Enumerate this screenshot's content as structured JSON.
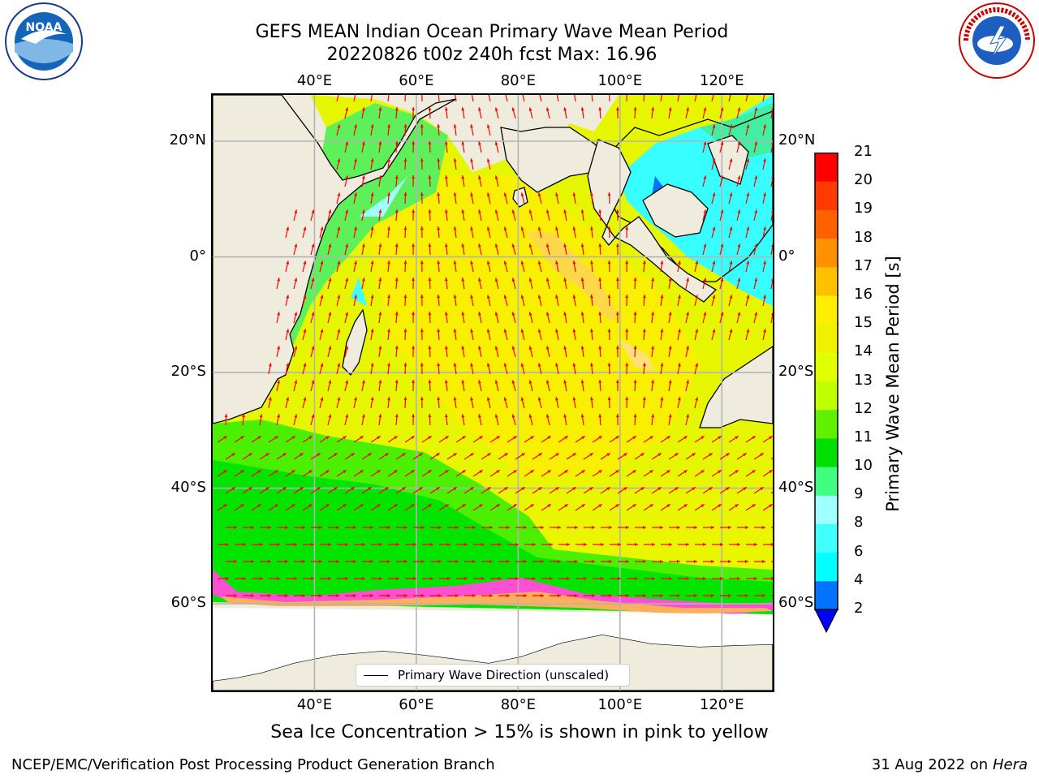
{
  "title_line1": "GEFS MEAN Indian Ocean Primary Wave Mean Period",
  "title_line2": "20220826 t00z 240h fcst   Max: 16.96",
  "lon_ticks": [
    {
      "lon": 40,
      "label": "40°E"
    },
    {
      "lon": 60,
      "label": "60°E"
    },
    {
      "lon": 80,
      "label": "80°E"
    },
    {
      "lon": 100,
      "label": "100°E"
    },
    {
      "lon": 120,
      "label": "120°E"
    }
  ],
  "lat_ticks": [
    {
      "lat": 20,
      "label": "20°N"
    },
    {
      "lat": 0,
      "label": "0°"
    },
    {
      "lat": -20,
      "label": "20°S"
    },
    {
      "lat": -40,
      "label": "40°S"
    },
    {
      "lat": -60,
      "label": "60°S"
    }
  ],
  "legend_label": "Primary Wave Direction (unscaled)",
  "colorbar": {
    "title": "Primary Wave Mean Period [s]",
    "levels": [
      2,
      4,
      6,
      8,
      9,
      10,
      11,
      12,
      13,
      14,
      15,
      16,
      17,
      18,
      19,
      20,
      21
    ],
    "labels": [
      "2",
      "4",
      "6",
      "8",
      "9",
      "10",
      "11",
      "12",
      "13",
      "14",
      "15",
      "16",
      "17",
      "18",
      "19",
      "20",
      "21"
    ],
    "colors": [
      "#0073ff",
      "#00ffff",
      "#40ffff",
      "#a0ffff",
      "#40ff80",
      "#00e000",
      "#60f000",
      "#c0ff00",
      "#e0ff00",
      "#f0f000",
      "#ffee00",
      "#ffc000",
      "#ff9000",
      "#ff6000",
      "#ff3a00",
      "#ff0000"
    ],
    "under_color": "#0000ff"
  },
  "map": {
    "lon_range": [
      20,
      130
    ],
    "lat_range": [
      -75,
      28
    ],
    "arrow_color": "#ff0000"
  },
  "sea_ice_note": "Sea Ice Concentration > 15% is shown in pink to yellow",
  "footer_left": "NCEP/EMC/Verification Post Processing Product Generation Branch",
  "footer_right_date": "31 Aug 2022 on",
  "footer_right_host": "Hera",
  "logos": {
    "noaa_text": "NOAA",
    "nws_text": "NATIONAL WEATHER SERVICE"
  }
}
